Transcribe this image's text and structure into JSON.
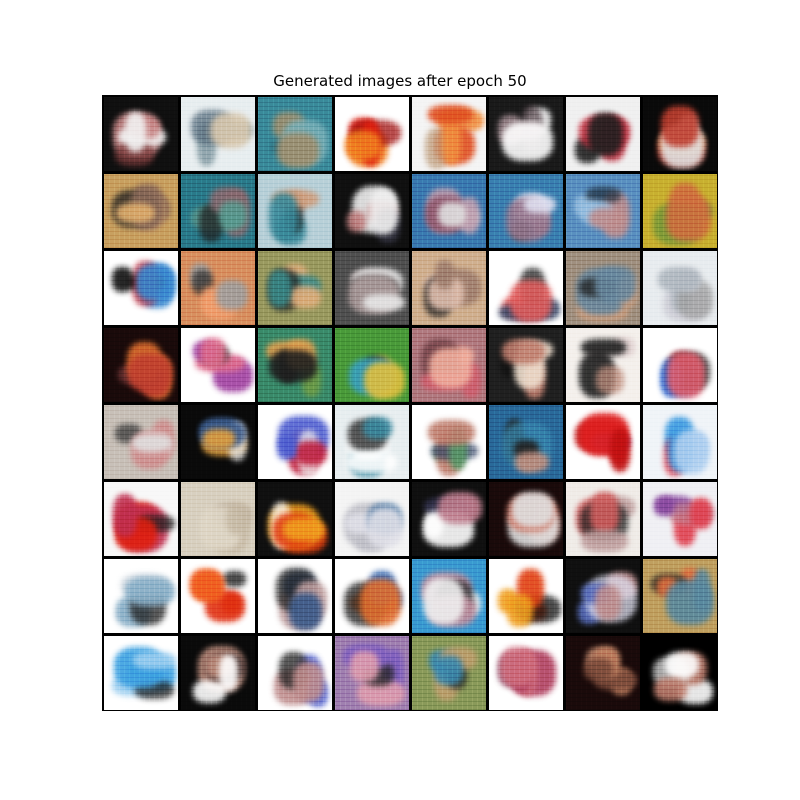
{
  "figure": {
    "title": "Generated images after epoch 50",
    "rows": 8,
    "cols": 8
  },
  "tiles": [
    {
      "bg": "#101010",
      "c1": "#c98a8a",
      "c2": "#f2f2f2",
      "c3": "#7a3a3a"
    },
    {
      "bg": "#e8eef0",
      "c1": "#8aa0a8",
      "c2": "#d9c9b0",
      "c3": "#5a7080"
    },
    {
      "bg": "#3a8a9a",
      "c1": "#7ab0b8",
      "c2": "#a09070",
      "c3": "#2a6a7a"
    },
    {
      "bg": "#ffffff",
      "c1": "#e02010",
      "c2": "#f08020",
      "c3": "#a01010"
    },
    {
      "bg": "#f4f4f4",
      "c1": "#f09040",
      "c2": "#e05020",
      "c3": "#c0a080"
    },
    {
      "bg": "#1a1a1a",
      "c1": "#a08a90",
      "c2": "#ffffff",
      "c3": "#5a4a50"
    },
    {
      "bg": "#f0f0f0",
      "c1": "#c03040",
      "c2": "#202020",
      "c3": "#ffffff"
    },
    {
      "bg": "#0a0a0a",
      "c1": "#e0e0e0",
      "c2": "#c04030",
      "c3": "#f0a060"
    },
    {
      "bg": "#c8a060",
      "c1": "#8a6a5a",
      "c2": "#e0b070",
      "c3": "#202020"
    },
    {
      "bg": "#2a7a8a",
      "c1": "#8a6a70",
      "c2": "#5a9a90",
      "c3": "#202020"
    },
    {
      "bg": "#b8d0d8",
      "c1": "#d0a080",
      "c2": "#3a8a9a",
      "c3": "#202020"
    },
    {
      "bg": "#101010",
      "c1": "#f0f0f0",
      "c2": "#c08080",
      "c3": "#3a3a4a"
    },
    {
      "bg": "#3a7ab0",
      "c1": "#c0a0b0",
      "c2": "#e0e0e0",
      "c3": "#8a4a60"
    },
    {
      "bg": "#3a80b0",
      "c1": "#9a7a90",
      "c2": "#e0e0f0",
      "c3": "#202020"
    },
    {
      "bg": "#5a90c0",
      "c1": "#9ac0e0",
      "c2": "#c09090",
      "c3": "#203040"
    },
    {
      "bg": "#c8b030",
      "c1": "#7a9a3a",
      "c2": "#d07040",
      "c3": "#202020"
    },
    {
      "bg": "#ffffff",
      "c1": "#3a8ad0",
      "c2": "#101010",
      "c3": "#c03040"
    },
    {
      "bg": "#d89060",
      "c1": "#f0a070",
      "c2": "#a0a0a0",
      "c3": "#303030"
    },
    {
      "bg": "#9a9a60",
      "c1": "#e0b080",
      "c2": "#3a8a8a",
      "c3": "#202020"
    },
    {
      "bg": "#505050",
      "c1": "#b0a0a0",
      "c2": "#e8e8e8",
      "c3": "#202020"
    },
    {
      "bg": "#d0b090",
      "c1": "#e0c0b0",
      "c2": "#a08070",
      "c3": "#202020"
    },
    {
      "bg": "#ffffff",
      "c1": "#3a4a6a",
      "c2": "#e06060",
      "c3": "#202020"
    },
    {
      "bg": "#a09080",
      "c1": "#d0a080",
      "c2": "#6a8aa0",
      "c3": "#202020"
    },
    {
      "bg": "#e8ecef",
      "c1": "#d0d0d8",
      "c2": "#b0b8c0",
      "c3": "#a0a0a0"
    },
    {
      "bg": "#1a0a0a",
      "c1": "#e07030",
      "c2": "#c04030",
      "c3": "#7a3a3a"
    },
    {
      "bg": "#ffffff",
      "c1": "#a040a0",
      "c2": "#e07090",
      "c3": "#303030"
    },
    {
      "bg": "#3a8a6a",
      "c1": "#e0a050",
      "c2": "#202020",
      "c3": "#7aa040"
    },
    {
      "bg": "#4a9a3a",
      "c1": "#3aa0c0",
      "c2": "#e0c040",
      "c3": "#202020"
    },
    {
      "bg": "#b07a80",
      "c1": "#d06070",
      "c2": "#f0b0a0",
      "c3": "#6a3a40"
    },
    {
      "bg": "#202020",
      "c1": "#f0e0d0",
      "c2": "#c08070",
      "c3": "#101010"
    },
    {
      "bg": "#f4f0ec",
      "c1": "#e0d0d0",
      "c2": "#202020",
      "c3": "#c09080"
    },
    {
      "bg": "#ffffff",
      "c1": "#3a70d0",
      "c2": "#e06070",
      "c3": "#202020"
    },
    {
      "bg": "#c8c0b8",
      "c1": "#d09090",
      "c2": "#e0e0e0",
      "c3": "#3a3a3a"
    },
    {
      "bg": "#0a0a0a",
      "c1": "#3a5a8a",
      "c2": "#e0a040",
      "c3": "#f0f0f0"
    },
    {
      "bg": "#ffffff",
      "c1": "#c02040",
      "c2": "#5060d0",
      "c3": "#f0f0f0"
    },
    {
      "bg": "#e8eef0",
      "c1": "#3a8aa0",
      "c2": "#ffffff",
      "c3": "#202020"
    },
    {
      "bg": "#ffffff",
      "c1": "#5a9a6a",
      "c2": "#c08070",
      "c3": "#3a4a6a"
    },
    {
      "bg": "#2a6a9a",
      "c1": "#202020",
      "c2": "#c09080",
      "c3": "#3a8ab0"
    },
    {
      "bg": "#ffffff",
      "c1": "#e02020",
      "c2": "#c01010",
      "c3": "#7a4aa0"
    },
    {
      "bg": "#f0f4f8",
      "c1": "#3a9ae0",
      "c2": "#b0d0f0",
      "c3": "#e03040"
    },
    {
      "bg": "#f8f8f8",
      "c1": "#e02010",
      "c2": "#c03050",
      "c3": "#202020"
    },
    {
      "bg": "#d8d0c0",
      "c1": "#e0d8c8",
      "c2": "#c8bca8",
      "c3": "#b0a090"
    },
    {
      "bg": "#101010",
      "c1": "#e04010",
      "c2": "#f0a020",
      "c3": "#ffffff"
    },
    {
      "bg": "#f4f4f4",
      "c1": "#c0c0c8",
      "c2": "#e0e0e8",
      "c3": "#3a6a9a"
    },
    {
      "bg": "#101010",
      "c1": "#ffffff",
      "c2": "#c08090",
      "c3": "#3a3a5a"
    },
    {
      "bg": "#1a0a0a",
      "c1": "#d08070",
      "c2": "#e0e0e0",
      "c3": "#7a3a3a"
    },
    {
      "bg": "#f0ece8",
      "c1": "#d06060",
      "c2": "#c0a0a0",
      "c3": "#202020"
    },
    {
      "bg": "#f0f0f4",
      "c1": "#e04050",
      "c2": "#8a4aa0",
      "c3": "#c08090"
    },
    {
      "bg": "#ffffff",
      "c1": "#d0d8e0",
      "c2": "#8ab0c8",
      "c3": "#202020"
    },
    {
      "bg": "#ffffff",
      "c1": "#e03010",
      "c2": "#f06020",
      "c3": "#101010"
    },
    {
      "bg": "#ffffff",
      "c1": "#c0a0a0",
      "c2": "#3a5a8a",
      "c3": "#202020"
    },
    {
      "bg": "#ffffff",
      "c1": "#3a6ab0",
      "c2": "#e07030",
      "c3": "#202020"
    },
    {
      "bg": "#3a9ad0",
      "c1": "#c090a0",
      "c2": "#f0f0f0",
      "c3": "#202020"
    },
    {
      "bg": "#ffffff",
      "c1": "#e04010",
      "c2": "#f0a020",
      "c3": "#101010"
    },
    {
      "bg": "#101010",
      "c1": "#5a70c0",
      "c2": "#c09090",
      "c3": "#e0e0f0"
    },
    {
      "bg": "#c0a060",
      "c1": "#e07040",
      "c2": "#5a8aa0",
      "c3": "#202020"
    },
    {
      "bg": "#ffffff",
      "c1": "#3aa0e0",
      "c2": "#a0d0f0",
      "c3": "#202020"
    },
    {
      "bg": "#0a0a0a",
      "c1": "#c09080",
      "c2": "#ffffff",
      "c3": "#3a2a2a"
    },
    {
      "bg": "#ffffff",
      "c1": "#5a6ad0",
      "c2": "#c09090",
      "c3": "#202020"
    },
    {
      "bg": "#a080b0",
      "c1": "#8060c0",
      "c2": "#e0a0b0",
      "c3": "#202020"
    },
    {
      "bg": "#8a9a5a",
      "c1": "#c0a070",
      "c2": "#3a8ab0",
      "c3": "#202020"
    },
    {
      "bg": "#ffffff",
      "c1": "#b04060",
      "c2": "#d07080",
      "c3": "#7a3a5a"
    },
    {
      "bg": "#1a0a0a",
      "c1": "#c08060",
      "c2": "#7a4a3a",
      "c3": "#e0a080"
    },
    {
      "bg": "#000000",
      "c1": "#ffffff",
      "c2": "#c08070",
      "c3": "#e0e0e0"
    }
  ]
}
